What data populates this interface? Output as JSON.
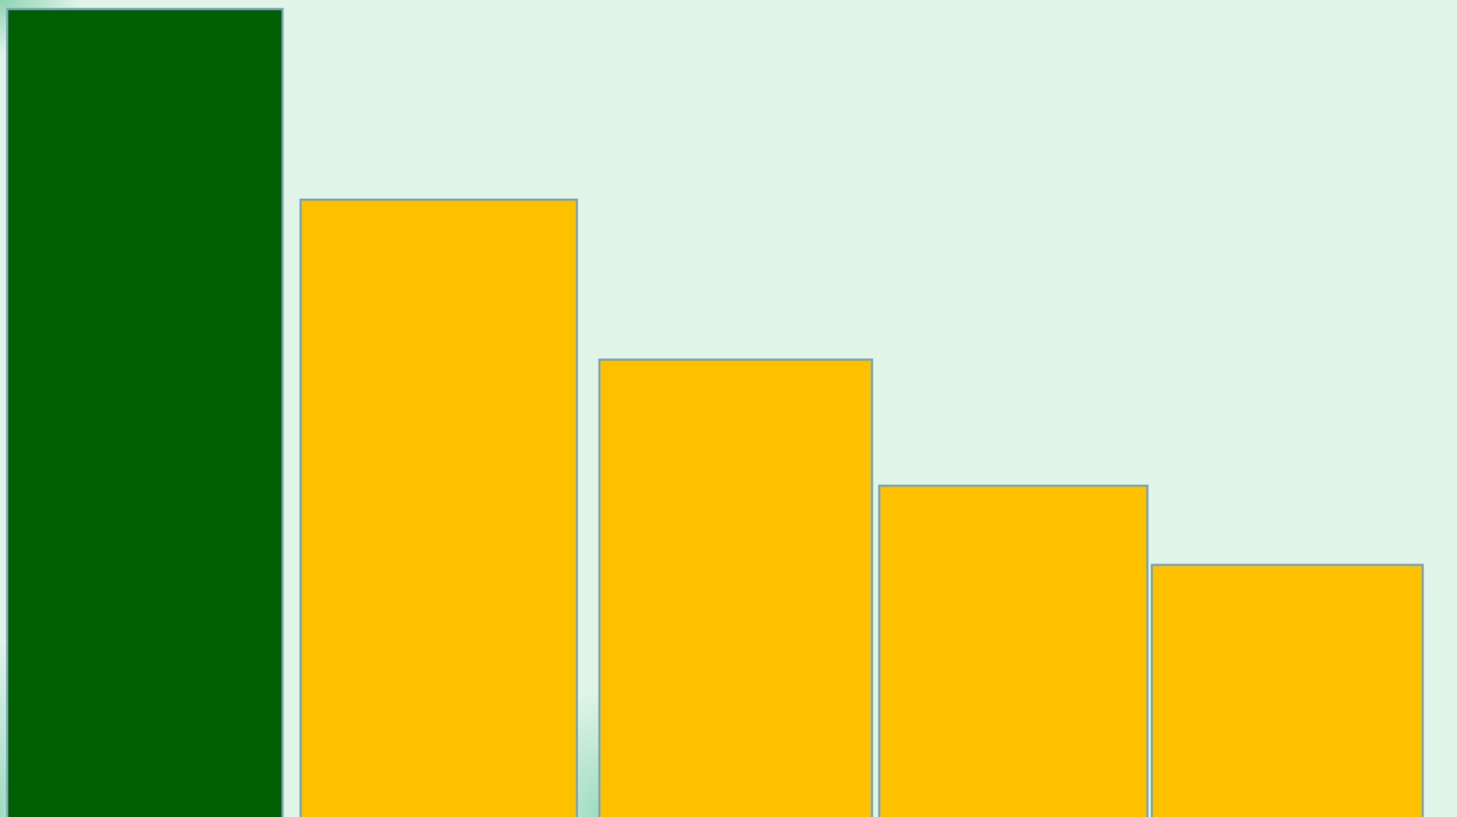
{
  "chart_data": {
    "type": "bar",
    "categories": [
      "",
      "",
      "",
      "",
      ""
    ],
    "values": [
      100,
      76.4,
      56.6,
      41.0,
      31.2
    ],
    "ylim": [
      0,
      100
    ],
    "grid": false,
    "legend": "none",
    "bar_colors": [
      "#005f00",
      "#ffc000",
      "#ffc000",
      "#ffc000",
      "#ffc000"
    ],
    "bar_edge_color": "#7aa7b8",
    "background_color": "#e1f4e8"
  }
}
